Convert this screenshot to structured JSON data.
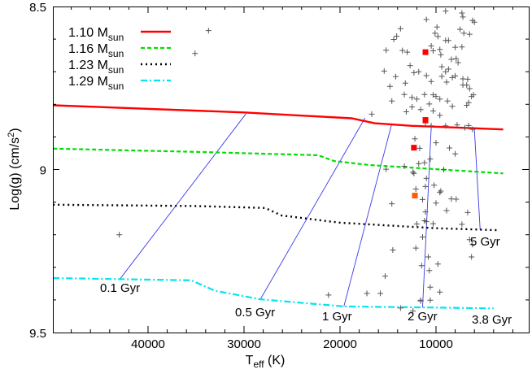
{
  "chart_data": {
    "type": "line",
    "title": "",
    "xlabel": "T_eff (K)",
    "xlabel_main": "T",
    "xlabel_sub": "eff",
    "xlabel_unit": " (K)",
    "ylabel": "Log(g) (cm/s^2)",
    "ylabel_main": "Log(g) (cm/s",
    "ylabel_sup": "2",
    "ylabel_close": ")",
    "xlim": [
      50000,
      300
    ],
    "ylim": [
      8.5,
      9.5
    ],
    "y_inverted": true,
    "x_inverted": true,
    "grid": false,
    "legend_position": "upper left",
    "x_ticks": [
      40000,
      30000,
      20000,
      10000
    ],
    "x_tick_labels": [
      "40000",
      "30000",
      "20000",
      "10000"
    ],
    "y_ticks": [
      8.5,
      9,
      9.5
    ],
    "y_tick_labels": [
      "8.5",
      "9",
      "9.5"
    ],
    "series": [
      {
        "name": "1.10 Msun",
        "label_main": "1.10 M",
        "label_sub": "sun",
        "color": "#ff0000",
        "style": "solid",
        "x": [
          49900,
          30000,
          18800,
          16400,
          12500,
          8000,
          3000
        ],
        "y": [
          8.803,
          8.825,
          8.843,
          8.858,
          8.866,
          8.871,
          8.877
        ]
      },
      {
        "name": "1.16 Msun",
        "label_main": "1.16 M",
        "label_sub": "sun",
        "color": "#00dd00",
        "style": "dashed",
        "x": [
          49900,
          35000,
          22300,
          20600,
          17000,
          10000,
          3000
        ],
        "y": [
          8.936,
          8.946,
          8.956,
          8.974,
          8.986,
          8.999,
          9.012
        ]
      },
      {
        "name": "1.23 Msun",
        "label_main": "1.23 M",
        "label_sub": "sun",
        "color": "#000000",
        "style": "dotted",
        "x": [
          49900,
          35000,
          27800,
          26100,
          20000,
          10000,
          3500
        ],
        "y": [
          9.108,
          9.112,
          9.118,
          9.141,
          9.163,
          9.18,
          9.186
        ]
      },
      {
        "name": "1.29 Msun",
        "label_main": "1.29 M",
        "label_sub": "sun",
        "color": "#00e5ee",
        "style": "dashdot",
        "x": [
          49900,
          35500,
          33000,
          28300,
          19600,
          11400,
          4000
        ],
        "y": [
          9.333,
          9.34,
          9.372,
          9.398,
          9.42,
          9.423,
          9.426
        ]
      }
    ],
    "isochrones": [
      {
        "label": "0.1 Gyr",
        "x": [
          29800,
          42900
        ],
        "y": [
          8.829,
          9.335
        ]
      },
      {
        "label": "0.5 Gyr",
        "x": [
          17400,
          28300
        ],
        "y": [
          8.842,
          9.398
        ]
      },
      {
        "label": "1 Gyr",
        "x": [
          14600,
          19600
        ],
        "y": [
          8.859,
          9.42
        ]
      },
      {
        "label": "2 Gyr",
        "x": [
          10500,
          11400
        ],
        "y": [
          8.872,
          9.423
        ]
      },
      {
        "label": "3.8 Gyr",
        "x": [],
        "y": []
      },
      {
        "label": "5 Gyr",
        "x": [
          6000,
          5400
        ],
        "y": [
          8.877,
          9.186
        ]
      }
    ],
    "isochrone_color": "#3a3aee",
    "special_points": [
      {
        "x": 11100,
        "y": 8.64,
        "color": "#ff0000"
      },
      {
        "x": 11100,
        "y": 8.848,
        "color": "#ff0000"
      },
      {
        "x": 12300,
        "y": 8.933,
        "color": "#ff0000"
      },
      {
        "x": 12200,
        "y": 9.08,
        "color": "#ff5a00"
      }
    ],
    "scatter_points": [
      [
        33700,
        8.574
      ],
      [
        35100,
        8.644
      ],
      [
        43000,
        9.2
      ],
      [
        9000,
        8.514
      ],
      [
        7300,
        8.52
      ],
      [
        7200,
        8.532
      ],
      [
        6200,
        8.543
      ],
      [
        6000,
        8.548
      ],
      [
        7500,
        8.57
      ],
      [
        7100,
        8.582
      ],
      [
        6500,
        8.585
      ],
      [
        11000,
        8.54
      ],
      [
        9900,
        8.563
      ],
      [
        10100,
        8.582
      ],
      [
        9800,
        8.592
      ],
      [
        9000,
        8.604
      ],
      [
        8700,
        8.604
      ],
      [
        8000,
        8.625
      ],
      [
        7300,
        8.624
      ],
      [
        13700,
        8.568
      ],
      [
        14100,
        8.591
      ],
      [
        14400,
        8.601
      ],
      [
        15200,
        8.634
      ],
      [
        13500,
        8.635
      ],
      [
        13000,
        8.64
      ],
      [
        10300,
        8.636
      ],
      [
        10500,
        8.621
      ],
      [
        9600,
        8.632
      ],
      [
        9500,
        8.648
      ],
      [
        8400,
        8.662
      ],
      [
        7700,
        8.672
      ],
      [
        7900,
        8.66
      ],
      [
        9400,
        8.685
      ],
      [
        9000,
        8.7
      ],
      [
        8700,
        8.692
      ],
      [
        8300,
        8.718
      ],
      [
        7200,
        8.722
      ],
      [
        6700,
        8.723
      ],
      [
        6800,
        8.741
      ],
      [
        6500,
        8.752
      ],
      [
        6100,
        8.771
      ],
      [
        12300,
        8.703
      ],
      [
        12700,
        8.681
      ],
      [
        15400,
        8.698
      ],
      [
        14200,
        8.715
      ],
      [
        14800,
        8.745
      ],
      [
        13200,
        8.735
      ],
      [
        11800,
        8.7
      ],
      [
        11000,
        8.712
      ],
      [
        10500,
        8.73
      ],
      [
        9400,
        8.714
      ],
      [
        8900,
        8.732
      ],
      [
        8000,
        8.713
      ],
      [
        7200,
        8.741
      ],
      [
        11200,
        8.77
      ],
      [
        10300,
        8.771
      ],
      [
        10000,
        8.776
      ],
      [
        9600,
        8.784
      ],
      [
        8800,
        8.79
      ],
      [
        8300,
        8.806
      ],
      [
        6600,
        8.795
      ],
      [
        6800,
        8.803
      ],
      [
        12000,
        8.784
      ],
      [
        12500,
        8.779
      ],
      [
        10700,
        8.799
      ],
      [
        11600,
        8.816
      ],
      [
        14600,
        8.79
      ],
      [
        13300,
        8.77
      ],
      [
        9600,
        8.834
      ],
      [
        10300,
        8.82
      ],
      [
        12500,
        8.808
      ],
      [
        13100,
        8.823
      ],
      [
        6300,
        8.776
      ],
      [
        16700,
        8.83
      ],
      [
        11100,
        8.857
      ],
      [
        10500,
        8.866
      ],
      [
        9000,
        8.866
      ],
      [
        7800,
        8.863
      ],
      [
        6600,
        8.865
      ],
      [
        7000,
        8.872
      ],
      [
        6200,
        8.877
      ],
      [
        10000,
        8.918
      ],
      [
        12200,
        8.906
      ],
      [
        11700,
        8.935
      ],
      [
        8600,
        8.934
      ],
      [
        8000,
        8.952
      ],
      [
        10600,
        8.968
      ],
      [
        11200,
        8.979
      ],
      [
        11800,
        8.982
      ],
      [
        9200,
        9.0
      ],
      [
        15200,
        8.999
      ],
      [
        12300,
        9.012
      ],
      [
        11000,
        9.027
      ],
      [
        10200,
        9.048
      ],
      [
        11100,
        9.052
      ],
      [
        12100,
        9.06
      ],
      [
        9600,
        9.07
      ],
      [
        8400,
        9.09
      ],
      [
        9500,
        9.066
      ],
      [
        13300,
        8.99
      ],
      [
        12400,
        9.008
      ],
      [
        7900,
        9.091
      ],
      [
        11400,
        9.092
      ],
      [
        10000,
        9.103
      ],
      [
        8900,
        9.126
      ],
      [
        11100,
        9.13
      ],
      [
        6700,
        9.132
      ],
      [
        11000,
        9.16
      ],
      [
        10300,
        9.166
      ],
      [
        7300,
        9.168
      ],
      [
        14600,
        9.105
      ],
      [
        12000,
        9.167
      ],
      [
        11200,
        9.157
      ],
      [
        11400,
        9.207
      ],
      [
        12100,
        9.241
      ],
      [
        10800,
        9.268
      ],
      [
        6500,
        9.215
      ],
      [
        6200,
        9.23
      ],
      [
        14500,
        9.247
      ],
      [
        11500,
        9.295
      ],
      [
        10700,
        9.31
      ],
      [
        9800,
        9.29
      ],
      [
        6300,
        9.268
      ],
      [
        15300,
        9.327
      ],
      [
        10600,
        9.361
      ],
      [
        11600,
        9.403
      ],
      [
        17200,
        9.38
      ],
      [
        21200,
        9.385
      ],
      [
        15800,
        9.38
      ],
      [
        11600,
        9.401
      ],
      [
        10600,
        9.401
      ],
      [
        12400,
        9.434
      ],
      [
        9600,
        9.376
      ],
      [
        13700,
        9.425
      ]
    ]
  }
}
